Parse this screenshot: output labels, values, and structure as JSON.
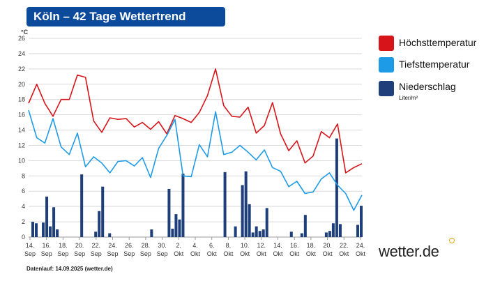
{
  "title": "Köln – 42 Tage Wettertrend",
  "unit_label": "°C",
  "legend": [
    {
      "label": "Höchsttemperatur",
      "color": "#d7141a"
    },
    {
      "label": "Tiefsttemperatur",
      "color": "#1e9be6"
    },
    {
      "label": "Niederschlag",
      "color": "#1f3f7a",
      "sub": "Liter/m²"
    }
  ],
  "brand": "wetter.de",
  "footer": "Datenlauf: 14.09.2025 (wetter.de)",
  "chart_data": {
    "type": "line",
    "ylim": [
      0,
      26
    ],
    "yticks": [
      0,
      2,
      4,
      6,
      8,
      10,
      12,
      14,
      16,
      18,
      20,
      22,
      24,
      26
    ],
    "x_tick_labels": [
      {
        "day": "14.",
        "month": "Sep"
      },
      {
        "day": "16.",
        "month": "Sep"
      },
      {
        "day": "18.",
        "month": "Sep"
      },
      {
        "day": "20.",
        "month": "Sep"
      },
      {
        "day": "22.",
        "month": "Sep"
      },
      {
        "day": "24.",
        "month": "Sep"
      },
      {
        "day": "26.",
        "month": "Sep"
      },
      {
        "day": "28.",
        "month": "Sep"
      },
      {
        "day": "30.",
        "month": "Sep"
      },
      {
        "day": "2.",
        "month": "Okt"
      },
      {
        "day": "4.",
        "month": "Okt"
      },
      {
        "day": "6.",
        "month": "Okt"
      },
      {
        "day": "8.",
        "month": "Okt"
      },
      {
        "day": "10.",
        "month": "Okt"
      },
      {
        "day": "12.",
        "month": "Okt"
      },
      {
        "day": "14.",
        "month": "Okt"
      },
      {
        "day": "16.",
        "month": "Okt"
      },
      {
        "day": "18.",
        "month": "Okt"
      },
      {
        "day": "20.",
        "month": "Okt"
      },
      {
        "day": "22.",
        "month": "Okt"
      },
      {
        "day": "24.",
        "month": "Okt"
      }
    ],
    "series": [
      {
        "name": "Höchsttemperatur",
        "color": "#d7141a",
        "values": [
          17.5,
          20,
          17.5,
          15.8,
          18,
          18,
          21.2,
          20.9,
          15.2,
          13.7,
          15.6,
          15.4,
          15.5,
          14.4,
          15,
          14.1,
          15.1,
          13.5,
          15.9,
          15.5,
          15,
          16.3,
          18.5,
          22,
          17.2,
          15.8,
          15.7,
          17,
          13.6,
          14.6,
          17.6,
          13.5,
          11.3,
          12.6,
          9.7,
          10.6,
          13.8,
          13,
          14.8,
          8.4,
          9.1,
          9.6
        ]
      },
      {
        "name": "Tiefsttemperatur",
        "color": "#1e9be6",
        "values": [
          16.6,
          13,
          12.3,
          15.5,
          11.8,
          10.8,
          13.6,
          9.2,
          10.5,
          9.7,
          8.4,
          9.9,
          10,
          9.3,
          10.4,
          7.8,
          11.6,
          13.3,
          15.4,
          8,
          7.9,
          12.1,
          10.5,
          16.4,
          10.8,
          11.1,
          12,
          11.1,
          10.1,
          11.4,
          9.1,
          8.6,
          6.6,
          7.3,
          5.7,
          5.9,
          7.6,
          8.4,
          6.8,
          5.7,
          3.5,
          5.5
        ]
      },
      {
        "name": "Niederschlag",
        "color": "#1f3f7a",
        "type": "bar",
        "values": [
          2,
          1.8,
          0,
          1.9,
          5.3,
          1.4,
          3.9,
          1,
          0,
          0,
          0,
          0,
          0,
          0,
          8.2,
          0,
          0,
          0,
          0.7,
          3.4,
          6.6,
          0,
          0.5,
          0,
          0,
          0,
          0,
          0,
          0,
          0,
          0,
          0,
          0,
          0,
          1,
          0,
          0,
          0,
          0,
          6.3,
          1.1,
          3,
          2.3,
          8.3,
          0,
          0,
          0,
          0,
          0,
          0,
          0,
          0,
          0,
          0,
          0,
          8.5,
          0,
          0,
          1.4,
          0,
          6.8,
          8.6,
          4.3,
          0.6,
          1.4,
          0.8,
          1,
          3.8,
          0,
          0,
          0,
          0,
          0,
          0,
          0.7,
          0,
          0,
          0.5,
          2.9,
          0,
          0,
          0,
          0,
          0,
          0.6,
          0.8,
          1.8,
          12.9,
          1.7,
          0,
          0,
          0,
          0,
          1.6,
          4.1
        ]
      }
    ]
  }
}
